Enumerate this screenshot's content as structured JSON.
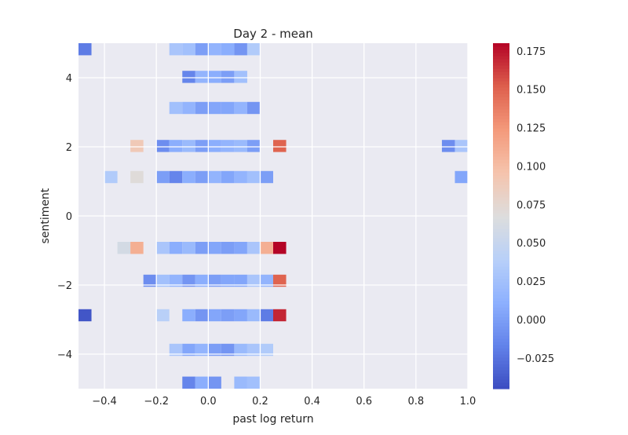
{
  "chart_data": {
    "type": "heatmap",
    "title": "Day 2 - mean",
    "xlabel": "past log return",
    "ylabel": "sentiment",
    "xlim": [
      -0.5,
      1.0
    ],
    "ylim": [
      -5,
      5
    ],
    "grid": true,
    "x_ticks": [
      {
        "value": -0.4,
        "label": "−0.4"
      },
      {
        "value": -0.2,
        "label": "−0.2"
      },
      {
        "value": 0.0,
        "label": "0.0"
      },
      {
        "value": 0.2,
        "label": "0.2"
      },
      {
        "value": 0.4,
        "label": "0.4"
      },
      {
        "value": 0.6,
        "label": "0.6"
      },
      {
        "value": 0.8,
        "label": "0.8"
      },
      {
        "value": 1.0,
        "label": "1.0"
      }
    ],
    "y_ticks": [
      {
        "value": 4,
        "label": "4"
      },
      {
        "value": 2,
        "label": "2"
      },
      {
        "value": 0,
        "label": "0"
      },
      {
        "value": -2,
        "label": "−2"
      },
      {
        "value": -4,
        "label": "−4"
      }
    ],
    "x_bin_width": 0.05,
    "y_bin_height": 0.35,
    "colorbar": {
      "colormap": "coolwarm",
      "min": -0.045,
      "max": 0.18,
      "ticks": [
        {
          "value": 0.175,
          "label": "0.175"
        },
        {
          "value": 0.15,
          "label": "0.150"
        },
        {
          "value": 0.125,
          "label": "0.125"
        },
        {
          "value": 0.1,
          "label": "0.100"
        },
        {
          "value": 0.075,
          "label": "0.075"
        },
        {
          "value": 0.05,
          "label": "0.050"
        },
        {
          "value": 0.025,
          "label": "0.025"
        },
        {
          "value": 0.0,
          "label": "0.000"
        },
        {
          "value": -0.025,
          "label": "−0.025"
        }
      ]
    },
    "cells": [
      {
        "x": -0.5,
        "y": 4.65,
        "value": -0.02
      },
      {
        "x": -0.15,
        "y": 4.65,
        "value": 0.03
      },
      {
        "x": -0.1,
        "y": 4.65,
        "value": 0.025
      },
      {
        "x": -0.05,
        "y": 4.65,
        "value": 0.0
      },
      {
        "x": 0.0,
        "y": 4.65,
        "value": 0.015
      },
      {
        "x": 0.05,
        "y": 4.65,
        "value": 0.01
      },
      {
        "x": 0.1,
        "y": 4.65,
        "value": -0.005
      },
      {
        "x": 0.15,
        "y": 4.65,
        "value": 0.035
      },
      {
        "x": -0.1,
        "y": 3.85,
        "value": -0.015
      },
      {
        "x": -0.05,
        "y": 3.85,
        "value": 0.015
      },
      {
        "x": 0.0,
        "y": 3.85,
        "value": 0.01
      },
      {
        "x": 0.05,
        "y": 3.85,
        "value": 0.0
      },
      {
        "x": 0.1,
        "y": 3.85,
        "value": 0.025
      },
      {
        "x": -0.15,
        "y": 2.95,
        "value": 0.025
      },
      {
        "x": -0.1,
        "y": 2.95,
        "value": 0.015
      },
      {
        "x": -0.05,
        "y": 2.95,
        "value": 0.0
      },
      {
        "x": 0.0,
        "y": 2.95,
        "value": 0.005
      },
      {
        "x": 0.05,
        "y": 2.95,
        "value": 0.005
      },
      {
        "x": 0.1,
        "y": 2.95,
        "value": 0.015
      },
      {
        "x": 0.15,
        "y": 2.95,
        "value": -0.005
      },
      {
        "x": -0.3,
        "y": 1.85,
        "value": 0.09
      },
      {
        "x": -0.2,
        "y": 1.85,
        "value": -0.01
      },
      {
        "x": -0.15,
        "y": 1.85,
        "value": 0.01
      },
      {
        "x": -0.1,
        "y": 1.85,
        "value": 0.02
      },
      {
        "x": -0.05,
        "y": 1.85,
        "value": 0.0
      },
      {
        "x": 0.0,
        "y": 1.85,
        "value": 0.01
      },
      {
        "x": 0.05,
        "y": 1.85,
        "value": 0.015
      },
      {
        "x": 0.1,
        "y": 1.85,
        "value": 0.02
      },
      {
        "x": 0.15,
        "y": 1.85,
        "value": 0.0
      },
      {
        "x": 0.25,
        "y": 1.85,
        "value": 0.15
      },
      {
        "x": 0.9,
        "y": 1.85,
        "value": -0.01
      },
      {
        "x": 0.95,
        "y": 1.85,
        "value": 0.03
      },
      {
        "x": -0.4,
        "y": 0.95,
        "value": 0.035
      },
      {
        "x": -0.3,
        "y": 0.95,
        "value": 0.07
      },
      {
        "x": -0.2,
        "y": 0.95,
        "value": 0.0
      },
      {
        "x": -0.15,
        "y": 0.95,
        "value": -0.015
      },
      {
        "x": -0.1,
        "y": 0.95,
        "value": 0.01
      },
      {
        "x": -0.05,
        "y": 0.95,
        "value": 0.0
      },
      {
        "x": 0.0,
        "y": 0.95,
        "value": 0.015
      },
      {
        "x": 0.05,
        "y": 0.95,
        "value": 0.005
      },
      {
        "x": 0.1,
        "y": 0.95,
        "value": 0.015
      },
      {
        "x": 0.15,
        "y": 0.95,
        "value": 0.025
      },
      {
        "x": 0.2,
        "y": 0.95,
        "value": 0.0
      },
      {
        "x": 0.95,
        "y": 0.95,
        "value": 0.005
      },
      {
        "x": -0.35,
        "y": -1.1,
        "value": 0.06
      },
      {
        "x": -0.3,
        "y": -1.1,
        "value": 0.11
      },
      {
        "x": -0.2,
        "y": -1.1,
        "value": 0.03
      },
      {
        "x": -0.15,
        "y": -1.1,
        "value": 0.01
      },
      {
        "x": -0.1,
        "y": -1.1,
        "value": 0.02
      },
      {
        "x": -0.05,
        "y": -1.1,
        "value": 0.0
      },
      {
        "x": 0.0,
        "y": -1.1,
        "value": 0.005
      },
      {
        "x": 0.05,
        "y": -1.1,
        "value": 0.0
      },
      {
        "x": 0.1,
        "y": -1.1,
        "value": 0.005
      },
      {
        "x": 0.15,
        "y": -1.1,
        "value": 0.03
      },
      {
        "x": 0.2,
        "y": -1.1,
        "value": 0.11
      },
      {
        "x": 0.25,
        "y": -1.1,
        "value": 0.18
      },
      {
        "x": -0.25,
        "y": -2.05,
        "value": -0.01
      },
      {
        "x": -0.2,
        "y": -2.05,
        "value": 0.025
      },
      {
        "x": -0.15,
        "y": -2.05,
        "value": 0.015
      },
      {
        "x": -0.1,
        "y": -2.05,
        "value": -0.005
      },
      {
        "x": -0.05,
        "y": -2.05,
        "value": 0.01
      },
      {
        "x": 0.0,
        "y": -2.05,
        "value": 0.0
      },
      {
        "x": 0.05,
        "y": -2.05,
        "value": 0.005
      },
      {
        "x": 0.1,
        "y": -2.05,
        "value": 0.005
      },
      {
        "x": 0.15,
        "y": -2.05,
        "value": 0.03
      },
      {
        "x": 0.2,
        "y": -2.05,
        "value": 0.015
      },
      {
        "x": 0.25,
        "y": -2.05,
        "value": 0.15
      },
      {
        "x": -0.5,
        "y": -3.05,
        "value": -0.04
      },
      {
        "x": -0.2,
        "y": -3.05,
        "value": 0.04
      },
      {
        "x": -0.1,
        "y": -3.05,
        "value": 0.01
      },
      {
        "x": -0.05,
        "y": -3.05,
        "value": -0.005
      },
      {
        "x": 0.0,
        "y": -3.05,
        "value": 0.005
      },
      {
        "x": 0.05,
        "y": -3.05,
        "value": 0.0
      },
      {
        "x": 0.1,
        "y": -3.05,
        "value": 0.005
      },
      {
        "x": 0.15,
        "y": -3.05,
        "value": 0.02
      },
      {
        "x": 0.2,
        "y": -3.05,
        "value": -0.02
      },
      {
        "x": 0.25,
        "y": -3.05,
        "value": 0.17
      },
      {
        "x": -0.15,
        "y": -4.05,
        "value": 0.03
      },
      {
        "x": -0.1,
        "y": -4.05,
        "value": 0.005
      },
      {
        "x": -0.05,
        "y": -4.05,
        "value": 0.015
      },
      {
        "x": 0.0,
        "y": -4.05,
        "value": 0.0
      },
      {
        "x": 0.05,
        "y": -4.05,
        "value": -0.005
      },
      {
        "x": 0.1,
        "y": -4.05,
        "value": 0.02
      },
      {
        "x": 0.15,
        "y": -4.05,
        "value": 0.03
      },
      {
        "x": 0.2,
        "y": -4.05,
        "value": 0.035
      },
      {
        "x": -0.1,
        "y": -5.0,
        "value": -0.015
      },
      {
        "x": -0.05,
        "y": -5.0,
        "value": 0.01
      },
      {
        "x": 0.0,
        "y": -5.0,
        "value": -0.005
      },
      {
        "x": 0.1,
        "y": -5.0,
        "value": 0.02
      },
      {
        "x": 0.15,
        "y": -5.0,
        "value": 0.025
      }
    ]
  }
}
